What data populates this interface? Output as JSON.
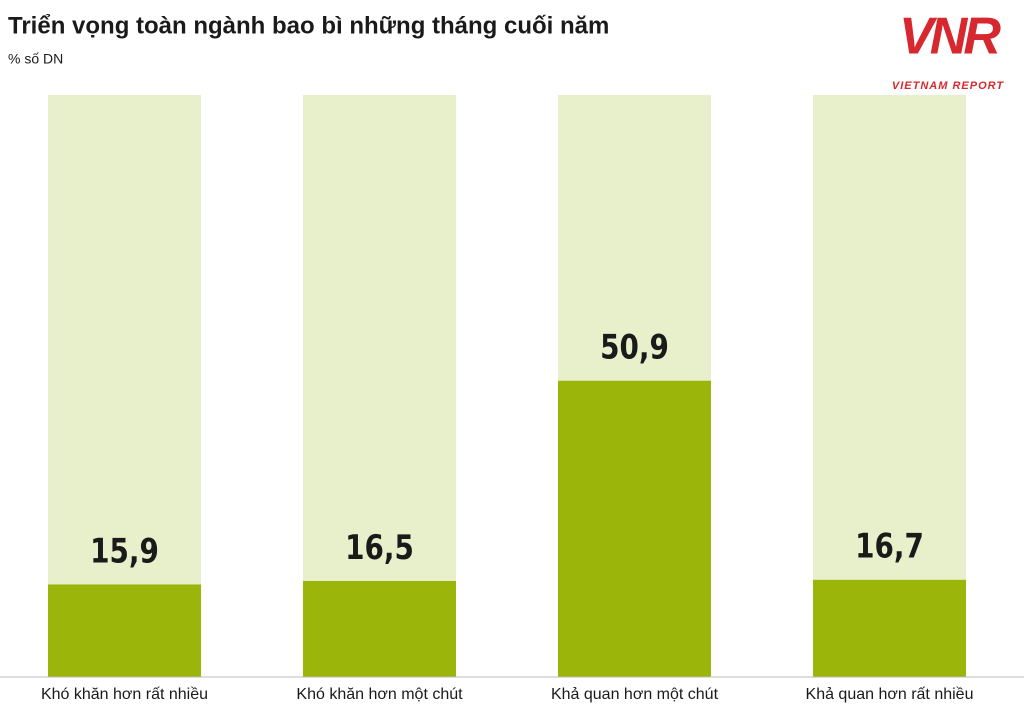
{
  "chart_data": {
    "type": "bar",
    "title": "Triển vọng toàn ngành bao bì những tháng cuối năm",
    "subtitle": "% số DN",
    "categories": [
      "Khó khăn hơn rất nhiều",
      "Khó khăn hơn một chút",
      "Khả quan hơn một chút",
      "Khả quan hơn rất nhiều"
    ],
    "values": [
      15.9,
      16.5,
      50.9,
      16.7
    ],
    "value_labels": [
      "15,9",
      "16,5",
      "50,9",
      "16,7"
    ],
    "color": "#9bb50b",
    "track_color": "#e8efcb",
    "ylim": [
      0,
      100
    ]
  },
  "logo": {
    "mark": "VNR",
    "text": "VIETNAM REPORT"
  }
}
